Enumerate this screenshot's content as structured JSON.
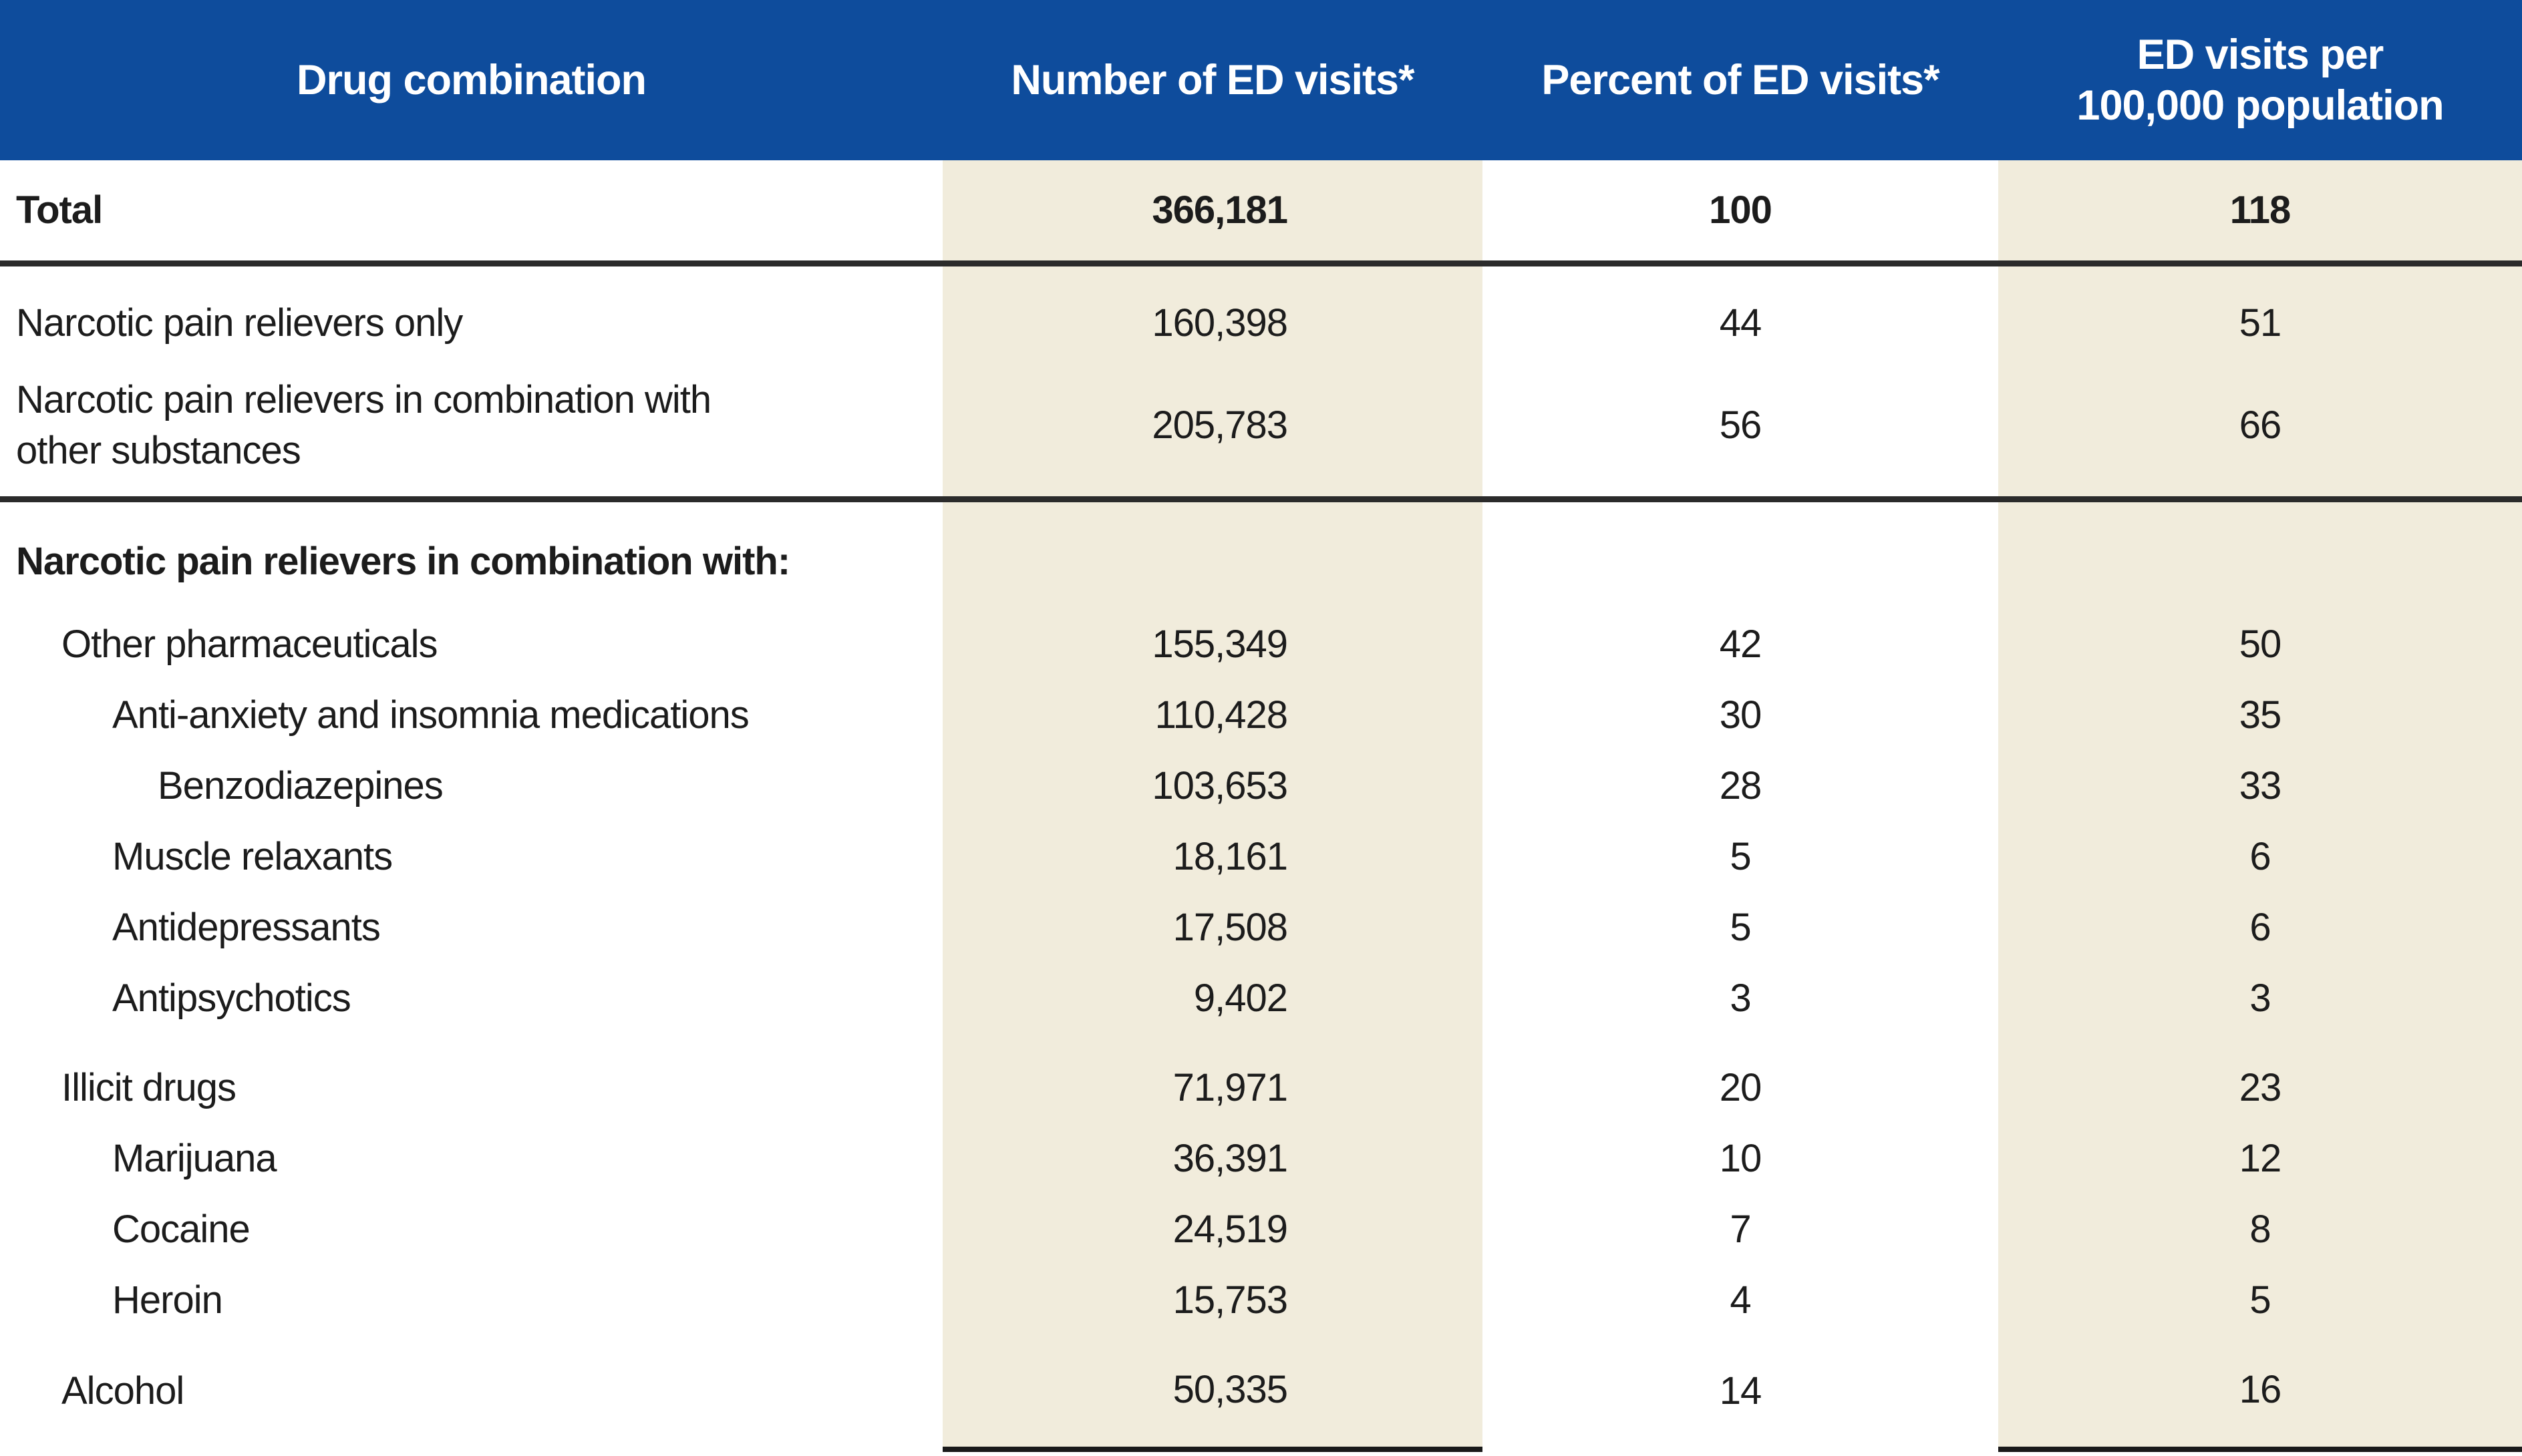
{
  "style": {
    "header_bg": "#0E4C9C",
    "header_text": "#FFFFFF",
    "stripe_bg": "#F1ECDC",
    "body_text": "#1C1C1C",
    "divider": "#2B2B2B"
  },
  "chart_data": {
    "type": "table",
    "columns": [
      "Drug combination",
      "Number of ED visits*",
      "Percent of ED visits*",
      "ED visits per\n100,000 population"
    ],
    "rows": [
      {
        "label": "Total",
        "indent": 0,
        "bold": true,
        "number": "366,181",
        "percent": "100",
        "rate": "118",
        "divider_after": true,
        "row_kind": "total"
      },
      {
        "label": "Narcotic pain relievers only",
        "indent": 0,
        "bold": false,
        "number": "160,398",
        "percent": "44",
        "rate": "51",
        "row_kind": "first"
      },
      {
        "label": "Narcotic pain relievers in combination with\nother substances",
        "indent": 0,
        "bold": false,
        "number": "205,783",
        "percent": "56",
        "rate": "66",
        "divider_after": true,
        "row_kind": "twoline"
      },
      {
        "label": "Narcotic pain relievers in combination with:",
        "indent": 0,
        "bold": true,
        "number": "",
        "percent": "",
        "rate": "",
        "row_kind": "section"
      },
      {
        "label": "Other pharmaceuticals",
        "indent": 1,
        "bold": false,
        "number": "155,349",
        "percent": "42",
        "rate": "50"
      },
      {
        "label": "Anti-anxiety and insomnia medications",
        "indent": 2,
        "bold": false,
        "number": "110,428",
        "percent": "30",
        "rate": "35"
      },
      {
        "label": "Benzodiazepines",
        "indent": 3,
        "bold": false,
        "number": "103,653",
        "percent": "28",
        "rate": "33"
      },
      {
        "label": "Muscle relaxants",
        "indent": 2,
        "bold": false,
        "number": "18,161",
        "percent": "5",
        "rate": "6"
      },
      {
        "label": "Antidepressants",
        "indent": 2,
        "bold": false,
        "number": "17,508",
        "percent": "5",
        "rate": "6"
      },
      {
        "label": "Antipsychotics",
        "indent": 2,
        "bold": false,
        "number": "9,402",
        "percent": "3",
        "rate": "3"
      },
      {
        "label": "Illicit drugs",
        "indent": 1,
        "bold": false,
        "number": "71,971",
        "percent": "20",
        "rate": "23",
        "group_start": true
      },
      {
        "label": "Marijuana",
        "indent": 2,
        "bold": false,
        "number": "36,391",
        "percent": "10",
        "rate": "12"
      },
      {
        "label": "Cocaine",
        "indent": 2,
        "bold": false,
        "number": "24,519",
        "percent": "7",
        "rate": "8"
      },
      {
        "label": "Heroin",
        "indent": 2,
        "bold": false,
        "number": "15,753",
        "percent": "4",
        "rate": "5"
      },
      {
        "label": "Alcohol",
        "indent": 1,
        "bold": false,
        "number": "50,335",
        "percent": "14",
        "rate": "16",
        "group_start": true,
        "row_kind": "last"
      }
    ]
  }
}
